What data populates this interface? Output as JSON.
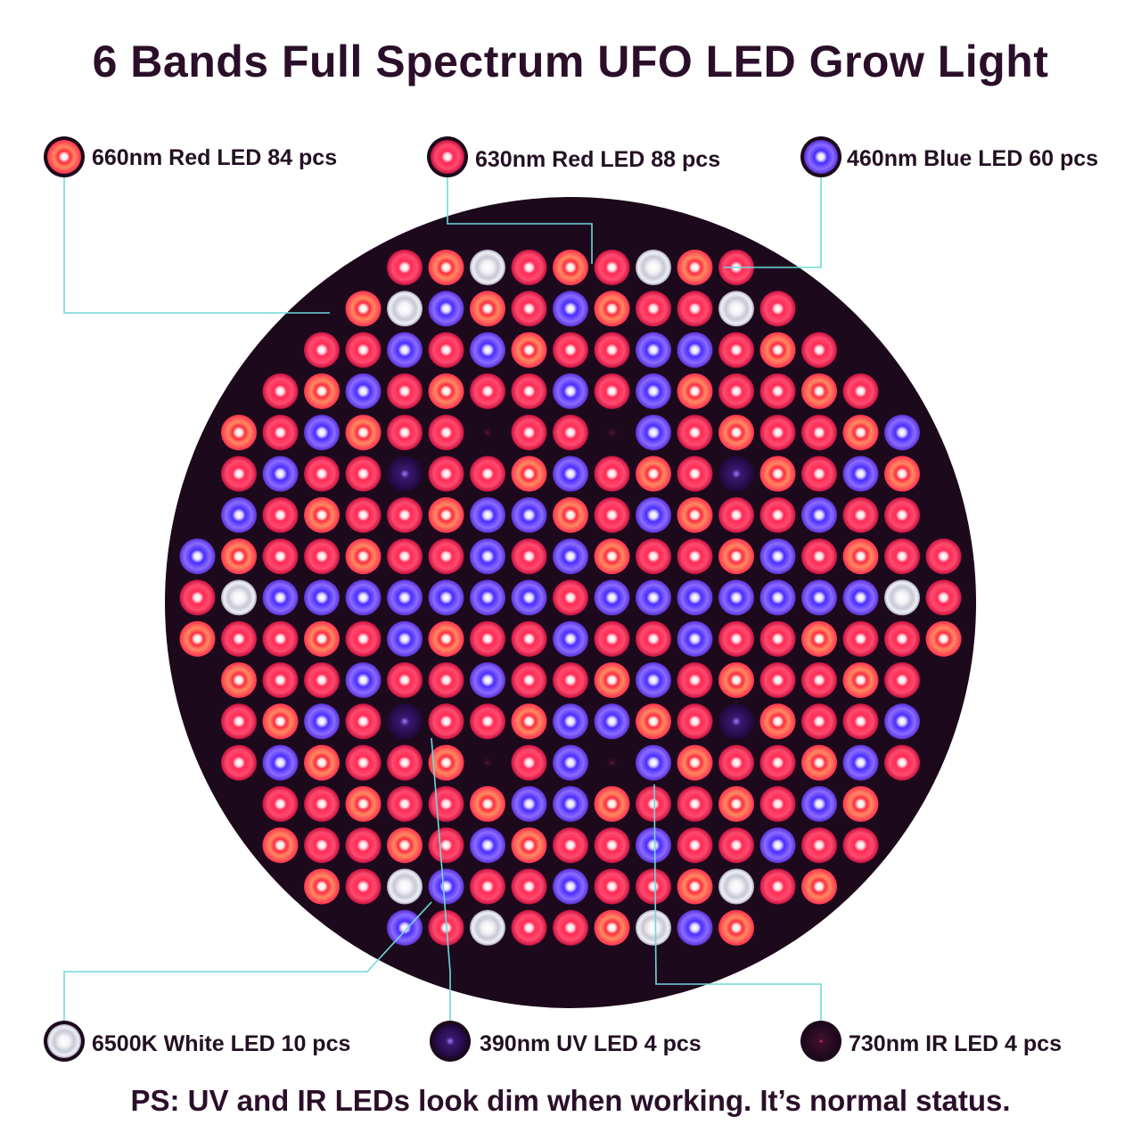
{
  "title": "6 Bands Full Spectrum UFO LED Grow Light",
  "footer": "PS: UV and IR LEDs look dim when working. It’s normal status.",
  "legend": [
    {
      "key": "red660",
      "label": "660nm Red LED 84 pcs",
      "color": "#ff3a6a"
    },
    {
      "key": "red630",
      "label": "630nm Red LED 88 pcs",
      "color": "#ff2050"
    },
    {
      "key": "blue460",
      "label": "460nm Blue LED 60 pcs",
      "color": "#6a3cff"
    },
    {
      "key": "white6500",
      "label": "6500K White LED 10 pcs",
      "color": "#e8e8f0"
    },
    {
      "key": "uv390",
      "label": "390nm UV LED 4 pcs",
      "color": "#3a1460"
    },
    {
      "key": "ir730",
      "label": "730nm IR LED 4 pcs",
      "color": "#2a0a30"
    }
  ],
  "colors": {
    "panel_bg": "#1c0a1c",
    "leader_line": "#6fd8dc",
    "text": "#2b0f2a"
  }
}
